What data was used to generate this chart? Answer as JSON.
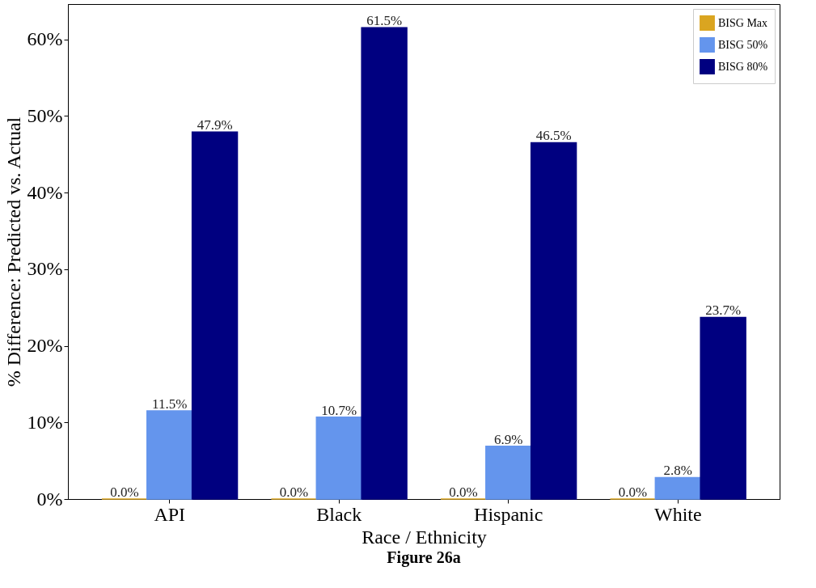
{
  "chart_data": {
    "type": "bar",
    "title": "Figure 26a",
    "xlabel": "Race / Ethnicity",
    "ylabel": "% Difference: Predicted vs. Actual",
    "categories": [
      "API",
      "Black",
      "Hispanic",
      "White"
    ],
    "series": [
      {
        "name": "BISG Max",
        "color": "#daa520",
        "values": [
          0.0,
          0.0,
          0.0,
          0.0
        ],
        "value_labels": [
          "0.0%",
          "0.0%",
          "0.0%",
          "0.0%"
        ]
      },
      {
        "name": "BISG 50%",
        "color": "#6495ed",
        "values": [
          11.5,
          10.7,
          6.9,
          2.8
        ],
        "value_labels": [
          "11.5%",
          "10.7%",
          "6.9%",
          "2.8%"
        ]
      },
      {
        "name": "BISG 80%",
        "color": "#000080",
        "values": [
          47.9,
          61.5,
          46.5,
          23.7
        ],
        "value_labels": [
          "47.9%",
          "61.5%",
          "46.5%",
          "23.7%"
        ]
      }
    ],
    "ylim": [
      0,
      64.6
    ],
    "yticks": [
      {
        "value": 0,
        "label": "0%"
      },
      {
        "value": 10,
        "label": "10%"
      },
      {
        "value": 20,
        "label": "20%"
      },
      {
        "value": 30,
        "label": "30%"
      },
      {
        "value": 40,
        "label": "40%"
      },
      {
        "value": 50,
        "label": "50%"
      },
      {
        "value": 60,
        "label": "60%"
      }
    ],
    "grid": false,
    "legend": "top right"
  }
}
